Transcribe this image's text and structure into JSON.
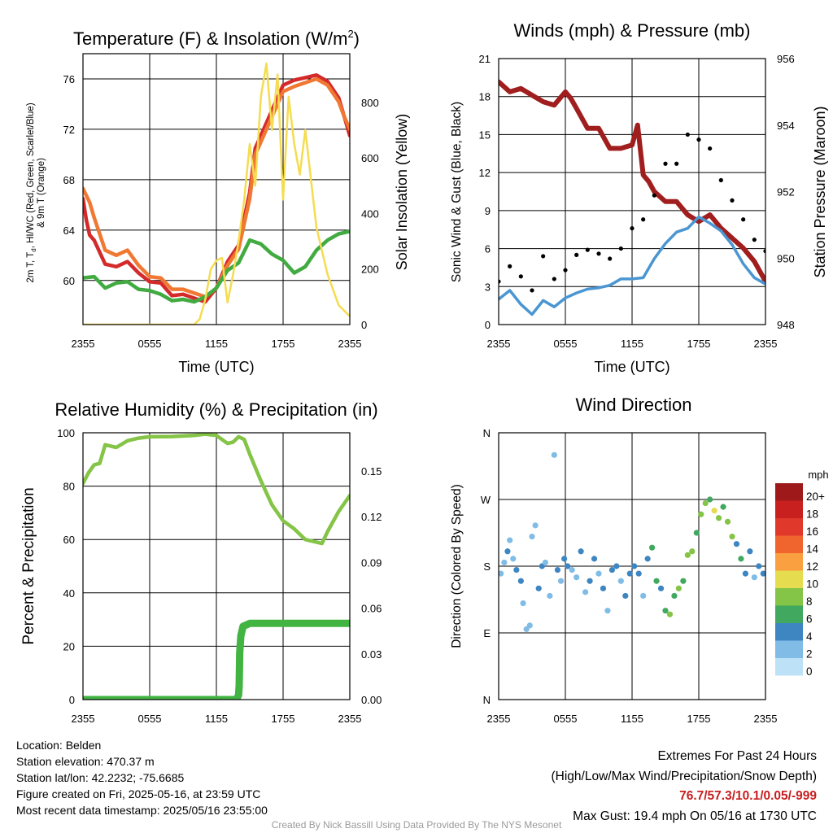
{
  "panels": {
    "temperature": {
      "title": "Temperature (F) & Insolation (W/m",
      "title_superscript": "2",
      "title_close": ")",
      "ylabel_left_lines": [
        "2m T, T",
        "d",
        ", HI/WC (Red, Green, Scarlet/Blue)",
        "& 9m T (Orange)"
      ],
      "ylabel_right": "Solar Insolation (Yellow)",
      "xlabel": "Time (UTC)"
    },
    "winds": {
      "title": "Winds (mph) & Pressure (mb)",
      "ylabel_left": "Sonic Wind & Gust (Blue, Black)",
      "ylabel_right": "Station Pressure (Maroon)",
      "xlabel": "Time (UTC)"
    },
    "humidity": {
      "title": "Relative Humidity (%) & Precipitation (in)",
      "ylabel_left": "Percent & Precipitation"
    },
    "direction": {
      "title": "Wind Direction",
      "ylabel_left": "Direction (Colored By Speed)",
      "legend_title": "mph"
    }
  },
  "chart_data": [
    {
      "id": "temperature",
      "type": "line",
      "title": "Temperature (F) & Insolation (W/m2)",
      "xlabel": "Time (UTC)",
      "x_ticks": [
        "2355",
        "0555",
        "1155",
        "1755",
        "2355"
      ],
      "x_hours_since_start": [
        0,
        6,
        12,
        18,
        24
      ],
      "y_left": {
        "lim": [
          56.5,
          78
        ],
        "ticks": [
          60,
          64,
          68,
          72,
          76
        ]
      },
      "y_right": {
        "lim": [
          0,
          975
        ],
        "ticks": [
          0,
          200,
          400,
          600,
          800
        ]
      },
      "grid": true,
      "series": [
        {
          "name": "2m T (Red)",
          "color": "#d42a2a",
          "axis": "left",
          "x": [
            0,
            0.3,
            0.6,
            1,
            2,
            3,
            4,
            5,
            6,
            7,
            8,
            9,
            10,
            11,
            12,
            13,
            14,
            15,
            15.5,
            16,
            17,
            18,
            19,
            20,
            21,
            22,
            23,
            23.5,
            24
          ],
          "y": [
            66.5,
            64.8,
            63.6,
            63.2,
            61.3,
            61.1,
            61.5,
            60.6,
            59.9,
            59.8,
            58.8,
            58.9,
            58.6,
            58.3,
            59.4,
            61.5,
            62.8,
            67,
            70.5,
            71.5,
            73.5,
            75.5,
            75.9,
            76.1,
            76.3,
            75.8,
            74.5,
            73,
            71.5
          ]
        },
        {
          "name": "9m T (Orange)",
          "color": "#f07832",
          "axis": "left",
          "x": [
            0,
            0.6,
            1,
            2,
            3,
            4,
            5,
            6,
            7,
            8,
            9,
            10,
            11,
            12,
            13,
            14,
            15,
            15.5,
            16,
            17,
            18,
            19,
            20,
            21,
            22,
            23,
            23.5,
            24
          ],
          "y": [
            67.3,
            66.2,
            65,
            62.4,
            62,
            62.4,
            61.2,
            60.3,
            60.2,
            59.3,
            59.3,
            59,
            58.7,
            59.4,
            61.2,
            62.5,
            66.5,
            70,
            71,
            73,
            75,
            75.4,
            75.7,
            76,
            75.5,
            74.2,
            73,
            72
          ]
        },
        {
          "name": "Td (Green)",
          "color": "#41ab41",
          "axis": "left",
          "x": [
            0,
            1,
            2,
            3,
            4,
            5,
            6,
            7,
            8,
            9,
            10,
            11,
            12,
            13,
            14,
            15,
            16,
            17,
            18,
            19,
            20,
            21,
            22,
            23,
            24
          ],
          "y": [
            60.2,
            60.3,
            59.4,
            59.8,
            59.9,
            59.3,
            59.2,
            58.9,
            58.4,
            58.5,
            58.3,
            58.7,
            59.4,
            60.8,
            61.4,
            63.2,
            62.9,
            62.1,
            61.6,
            60.6,
            61.1,
            62.4,
            63.2,
            63.7,
            63.9
          ]
        },
        {
          "name": "Solar Insolation (Yellow)",
          "color": "#f5dc50",
          "axis": "right",
          "x": [
            0,
            1,
            2,
            3,
            4,
            5,
            6,
            7,
            8,
            9,
            10,
            10.5,
            11,
            11.5,
            12,
            12.5,
            13,
            13.5,
            14,
            14.5,
            15,
            15.5,
            16,
            16.5,
            17,
            17.5,
            18,
            18.5,
            19,
            19.5,
            20,
            21,
            22,
            23,
            24
          ],
          "y": [
            0,
            0,
            0,
            0,
            0,
            0,
            0,
            0,
            0,
            0,
            0,
            20,
            90,
            200,
            230,
            240,
            80,
            180,
            300,
            450,
            650,
            500,
            820,
            940,
            700,
            900,
            450,
            820,
            650,
            540,
            700,
            350,
            180,
            70,
            30
          ]
        }
      ]
    },
    {
      "id": "winds",
      "type": "line",
      "title": "Winds (mph) & Pressure (mb)",
      "xlabel": "Time (UTC)",
      "x_ticks": [
        "2355",
        "0555",
        "1155",
        "1755",
        "2355"
      ],
      "x_hours_since_start": [
        0,
        6,
        12,
        18,
        24
      ],
      "y_left": {
        "lim": [
          0,
          21
        ],
        "ticks": [
          0,
          3,
          6,
          9,
          12,
          15,
          18,
          21
        ]
      },
      "y_right": {
        "lim": [
          948,
          956
        ],
        "ticks": [
          948,
          950,
          952,
          954,
          956
        ]
      },
      "grid": true,
      "series": [
        {
          "name": "Station Pressure (Maroon)",
          "color": "#a01e1e",
          "axis": "right",
          "x": [
            0,
            1,
            2,
            3,
            4,
            5,
            6,
            6.5,
            7,
            8,
            9,
            10,
            11,
            12,
            12.5,
            13,
            13.5,
            14,
            15,
            16,
            17,
            18,
            19,
            20,
            21,
            22,
            23,
            24
          ],
          "y": [
            955.3,
            955,
            955.1,
            954.9,
            954.7,
            954.6,
            955,
            954.8,
            954.5,
            953.9,
            953.9,
            953.3,
            953.3,
            953.4,
            954,
            952.5,
            952.3,
            952,
            951.7,
            951.7,
            951.3,
            951.1,
            951.3,
            950.9,
            950.6,
            950.3,
            949.9,
            949.3
          ]
        },
        {
          "name": "Sonic Wind (Blue)",
          "color": "#4a96d2",
          "axis": "left",
          "x": [
            0,
            1,
            2,
            3,
            4,
            5,
            6,
            7,
            8,
            9,
            10,
            11,
            12,
            13,
            14,
            15,
            16,
            17,
            18,
            19,
            20,
            21,
            22,
            23,
            24
          ],
          "y": [
            2,
            2.7,
            1.6,
            0.8,
            1.9,
            1.4,
            2.1,
            2.5,
            2.8,
            2.9,
            3.1,
            3.6,
            3.6,
            3.7,
            5.2,
            6.4,
            7.3,
            7.6,
            8.5,
            8,
            7.4,
            6.3,
            4.8,
            3.7,
            3.2
          ]
        },
        {
          "name": "Gust (Black)",
          "color": "#000000",
          "axis": "left",
          "x": [
            0,
            1,
            2,
            3,
            4,
            5,
            6,
            7,
            8,
            9,
            10,
            11,
            12,
            13,
            14,
            15,
            16,
            17,
            18,
            19,
            20,
            21,
            22,
            23,
            24
          ],
          "y": [
            3.4,
            4.6,
            3.8,
            2.7,
            5.4,
            3.6,
            4.3,
            5.5,
            5.9,
            5.6,
            5.2,
            6,
            7.6,
            8.3,
            10.2,
            12.7,
            12.7,
            15,
            14.6,
            13.9,
            11.4,
            9.8,
            8.3,
            6.7,
            5.8
          ]
        }
      ]
    },
    {
      "id": "humidity",
      "type": "line",
      "title": "Relative Humidity (%) & Precipitation (in)",
      "x_ticks": [
        "2355",
        "0555",
        "1155",
        "1755",
        "2355"
      ],
      "x_hours_since_start": [
        0,
        6,
        12,
        18,
        24
      ],
      "y_left": {
        "lim": [
          0,
          100
        ],
        "ticks": [
          0,
          20,
          40,
          60,
          80,
          100
        ]
      },
      "y_right": {
        "lim": [
          0,
          0.175
        ],
        "ticks": [
          0.0,
          0.03,
          0.06,
          0.09,
          0.12,
          0.15
        ],
        "tick_labels": [
          "0.00",
          "0.03",
          "0.06",
          "0.09",
          "0.12",
          "0.15"
        ]
      },
      "grid": true,
      "series": [
        {
          "name": "Relative Humidity",
          "color": "#84c446",
          "axis": "left",
          "x": [
            0,
            0.5,
            1,
            1.5,
            2,
            2.5,
            3,
            4,
            5,
            6,
            8,
            10,
            11,
            12,
            13,
            13.5,
            14,
            14.5,
            15,
            16,
            17,
            18,
            19,
            20,
            21,
            21.5,
            22,
            23,
            24
          ],
          "y": [
            81,
            85,
            88,
            88.5,
            95.5,
            95,
            94.5,
            97,
            98,
            98.5,
            98.6,
            99,
            99.5,
            99,
            96,
            96.5,
            98.5,
            97.5,
            92,
            82,
            73,
            67,
            64,
            60,
            59,
            58.5,
            63,
            70.5,
            76.5
          ]
        },
        {
          "name": "Precipitation",
          "color": "#41b441",
          "axis": "right",
          "x": [
            0,
            2,
            4,
            6,
            8,
            10,
            12,
            13,
            13.8,
            14,
            14.05,
            14.1,
            14.2,
            14.4,
            15,
            16,
            18,
            20,
            22,
            24
          ],
          "y": [
            0,
            0,
            0,
            0,
            0,
            0,
            0,
            0,
            0,
            0.003,
            0.009,
            0.031,
            0.042,
            0.048,
            0.05,
            0.05,
            0.05,
            0.05,
            0.05,
            0.05
          ]
        }
      ]
    },
    {
      "id": "direction",
      "type": "scatter",
      "title": "Wind Direction",
      "x_ticks": [
        "2355",
        "0555",
        "1155",
        "1755",
        "2355"
      ],
      "x_hours_since_start": [
        0,
        6,
        12,
        18,
        24
      ],
      "y_left": {
        "lim": [
          0,
          360
        ],
        "ticks": [
          0,
          90,
          180,
          270,
          360
        ],
        "tick_labels": [
          "N",
          "E",
          "S",
          "W",
          "N"
        ]
      },
      "grid": true,
      "legend": {
        "title": "mph",
        "placement": "right",
        "labels": [
          "20+",
          "18",
          "16",
          "14",
          "12",
          "10",
          "8",
          "6",
          "4",
          "2",
          "0"
        ],
        "colors": [
          "#9e1a1a",
          "#c8201e",
          "#e0382a",
          "#f0642d",
          "#faa040",
          "#e6dc50",
          "#84c446",
          "#41a860",
          "#3d86c2",
          "#80bce6",
          "#bde2f8"
        ]
      },
      "series": [
        {
          "name": "Direction colored by speed",
          "x": [
            0.2,
            0.5,
            0.8,
            1.0,
            1.3,
            1.6,
            2.0,
            2.2,
            2.5,
            2.8,
            3.0,
            3.3,
            3.6,
            3.9,
            4.2,
            4.6,
            5.0,
            5.3,
            5.6,
            5.9,
            6.2,
            6.6,
            7.0,
            7.4,
            7.8,
            8.2,
            8.6,
            9.0,
            9.4,
            9.8,
            10.2,
            10.6,
            11.0,
            11.4,
            11.8,
            12.2,
            12.6,
            13.0,
            13.4,
            13.8,
            14.2,
            14.6,
            15.0,
            15.4,
            15.8,
            16.2,
            16.6,
            17.0,
            17.4,
            17.8,
            18.2,
            18.6,
            19.0,
            19.4,
            19.8,
            20.2,
            20.6,
            21.0,
            21.4,
            21.8,
            22.2,
            22.6,
            23.0,
            23.4,
            23.8
          ],
          "y": [
            170,
            185,
            200,
            215,
            190,
            175,
            160,
            130,
            95,
            100,
            220,
            235,
            150,
            180,
            185,
            140,
            330,
            175,
            160,
            190,
            180,
            175,
            165,
            200,
            145,
            160,
            190,
            170,
            150,
            120,
            175,
            180,
            160,
            140,
            170,
            180,
            170,
            140,
            190,
            205,
            160,
            150,
            120,
            115,
            140,
            150,
            160,
            195,
            200,
            225,
            250,
            265,
            270,
            255,
            245,
            260,
            240,
            220,
            210,
            190,
            170,
            200,
            165,
            180,
            170
          ],
          "speed": [
            1,
            2,
            3,
            2,
            1,
            4,
            3,
            1,
            2,
            1,
            2,
            1,
            4,
            3,
            2,
            1,
            1,
            4,
            2,
            3,
            4,
            1,
            2,
            4,
            1,
            3,
            4,
            2,
            3,
            1,
            4,
            3,
            2,
            3,
            4,
            4,
            3,
            2,
            4,
            5,
            5,
            4,
            6,
            8,
            5,
            7,
            6,
            8,
            7,
            6,
            8,
            7,
            6,
            10,
            7,
            6,
            8,
            7,
            4,
            5,
            3,
            4,
            2,
            4,
            3
          ]
        }
      ]
    }
  ],
  "info_left": [
    "Location: Belden",
    "Station elevation: 470.37 m",
    "Station lat/lon: 42.2232; -75.6685",
    "Figure created on Fri, 2025-05-16, at 23:59 UTC",
    "Most recent data timestamp: 2025/05/16 23:55:00"
  ],
  "extremes": {
    "title": "Extremes For Past 24 Hours",
    "subtitle": "(High/Low/Max Wind/Precipitation/Snow Depth)",
    "values": "76.7/57.3/10.1/0.05/-999",
    "max_gust": "Max Gust: 19.4 mph On 05/16 at 1730 UTC"
  },
  "credit": "Created By Nick Bassill Using Data Provided By The NYS Mesonet"
}
